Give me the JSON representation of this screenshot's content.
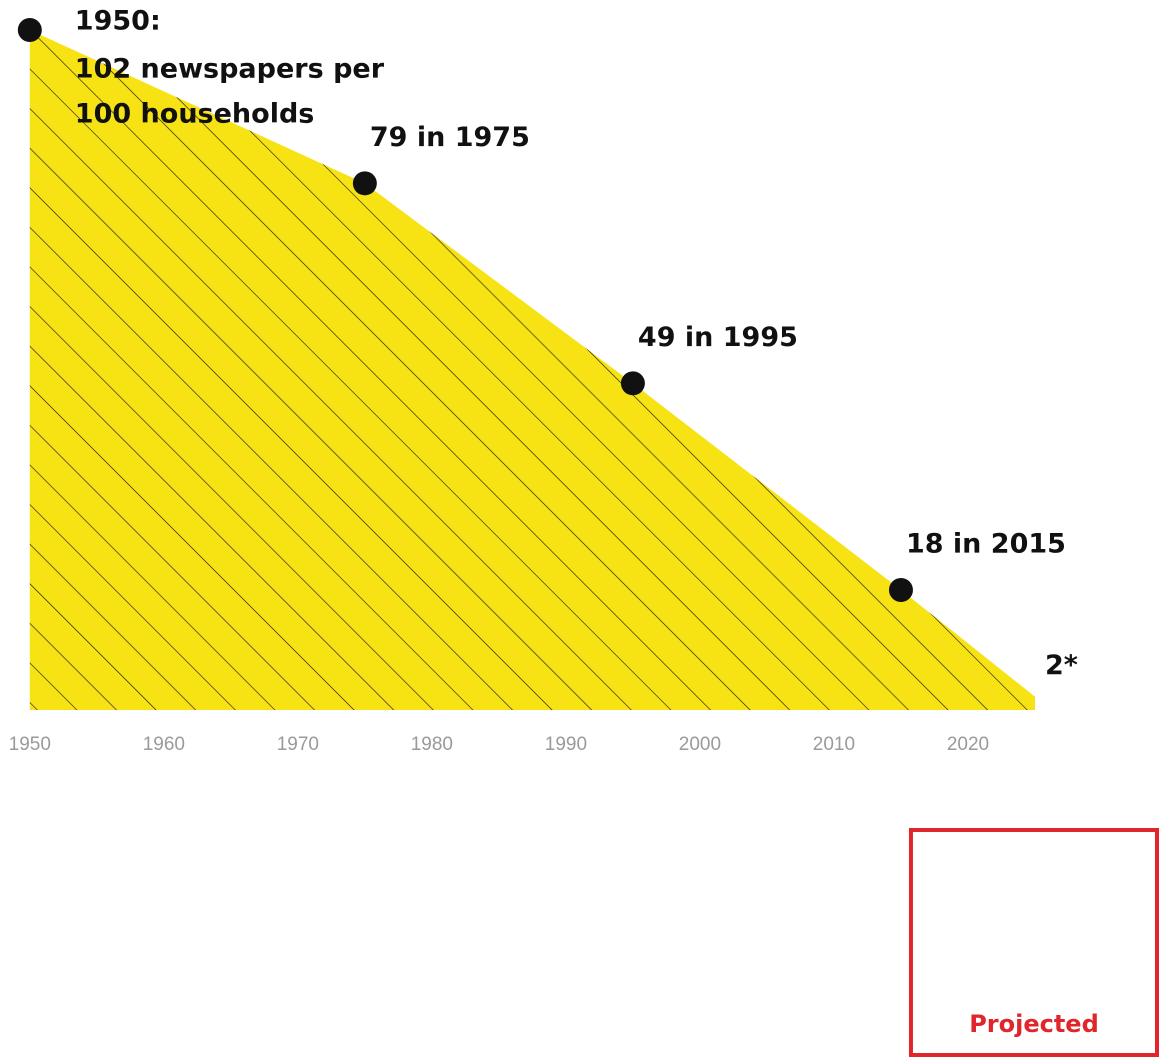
{
  "chart_data": {
    "type": "area",
    "x": [
      1950,
      1975,
      1995,
      2015,
      2025
    ],
    "values": [
      102,
      79,
      49,
      18,
      2
    ],
    "color": "#f7e214",
    "xlim": [
      1948,
      2030
    ],
    "xticks": [
      1950,
      1960,
      1970,
      1980,
      1990,
      2000,
      2010,
      2020
    ],
    "ylim": [
      0,
      105
    ],
    "annotations": [
      "1950:",
      "102 newspapers per",
      "100 households",
      "79 in 1975",
      "49 in 1995",
      "18 in 2015",
      "2*"
    ],
    "projected_label": "Projected"
  }
}
